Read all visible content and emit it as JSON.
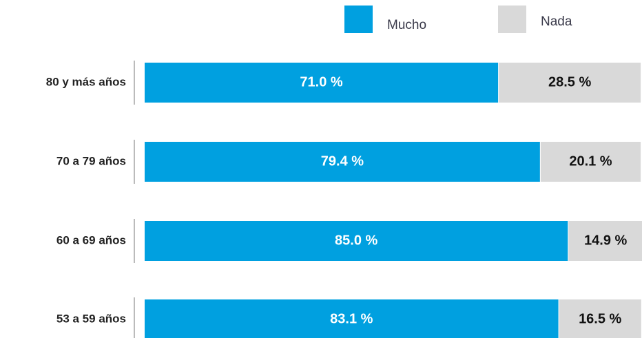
{
  "chart_data": {
    "type": "stacked-bar-horizontal",
    "categories": [
      "80 y más años",
      "70 a 79 años",
      "60 a 69 años",
      "53 a 59 años"
    ],
    "series": [
      {
        "name": "Mucho",
        "color": "#00a0e0",
        "label_color": "#ffffff",
        "values": [
          71.0,
          79.4,
          85.0,
          83.1
        ],
        "value_labels": [
          "71.0 %",
          "79.4 %",
          "85.0 %",
          "83.1 %"
        ]
      },
      {
        "name": "Nada",
        "color": "#d9d9d9",
        "label_color": "#111111",
        "values": [
          28.5,
          20.1,
          14.9,
          16.5
        ],
        "value_labels": [
          "28.5 %",
          "20.1 %",
          "14.9 %",
          "16.5 %"
        ]
      }
    ]
  }
}
